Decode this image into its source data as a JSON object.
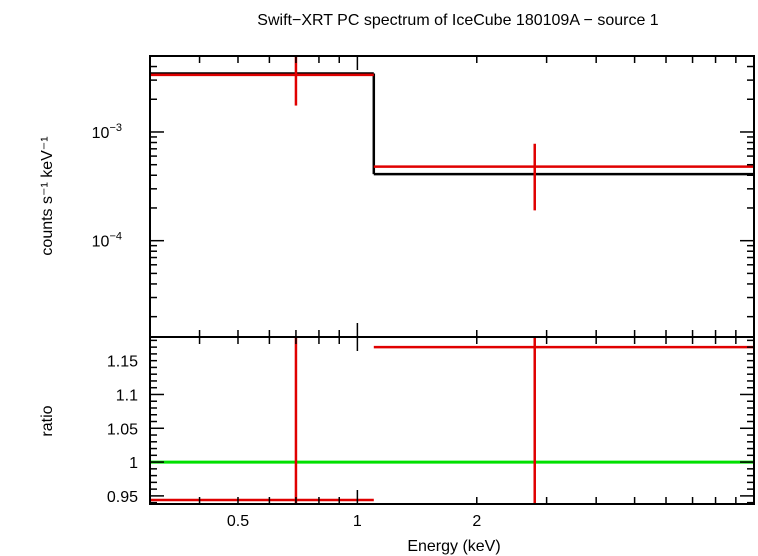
{
  "chart_data": {
    "type": "spectrum",
    "title": "Swift−XRT PC spectrum of IceCube 180109A − source 1",
    "xlabel": "Energy (keV)",
    "x_scale": "log",
    "xlim": [
      0.3,
      10
    ],
    "x_ticks": [
      {
        "value": 0.5,
        "label": "0.5"
      },
      {
        "value": 1,
        "label": "1"
      },
      {
        "value": 2,
        "label": "2"
      }
    ],
    "upper_panel": {
      "ylabel": "counts s⁻¹ keV⁻¹",
      "y_scale": "log",
      "ylim": [
        1.3e-05,
        0.005
      ],
      "y_ticks": [
        {
          "value": 0.001,
          "base": "10",
          "exp": "−3"
        },
        {
          "value": 0.0001,
          "base": "10",
          "exp": "−4"
        }
      ],
      "data": [
        {
          "x_low": 0.3,
          "x_high": 1.1,
          "x": 0.7,
          "y": 0.00335,
          "y_low": 0.00175,
          "y_high": 0.0049
        },
        {
          "x_low": 1.1,
          "x_high": 10,
          "x": 2.8,
          "y": 0.00048,
          "y_low": 0.00019,
          "y_high": 0.00078
        }
      ],
      "model": [
        {
          "x_low": 0.3,
          "x_high": 1.1,
          "y": 0.00345
        },
        {
          "x_low": 1.1,
          "x_high": 10,
          "y": 0.00041
        }
      ]
    },
    "lower_panel": {
      "ylabel": "ratio",
      "y_scale": "linear",
      "ylim": [
        0.938,
        1.185
      ],
      "y_ticks": [
        {
          "value": 0.95,
          "label": "0.95"
        },
        {
          "value": 1,
          "label": "1"
        },
        {
          "value": 1.05,
          "label": "1.05"
        },
        {
          "value": 1.1,
          "label": "1.1"
        },
        {
          "value": 1.15,
          "label": "1.15"
        }
      ],
      "reference": 1,
      "data": [
        {
          "x_low": 0.3,
          "x_high": 1.1,
          "x": 0.7,
          "y": 0.944,
          "y_low": 0.5,
          "y_high": 1.4
        },
        {
          "x_low": 1.1,
          "x_high": 10,
          "x": 2.8,
          "y": 1.17,
          "y_low": 0.5,
          "y_high": 1.9
        }
      ]
    },
    "colors": {
      "data": "#e00000",
      "model": "#000000",
      "reference": "#00e000",
      "axes": "#000000"
    }
  }
}
